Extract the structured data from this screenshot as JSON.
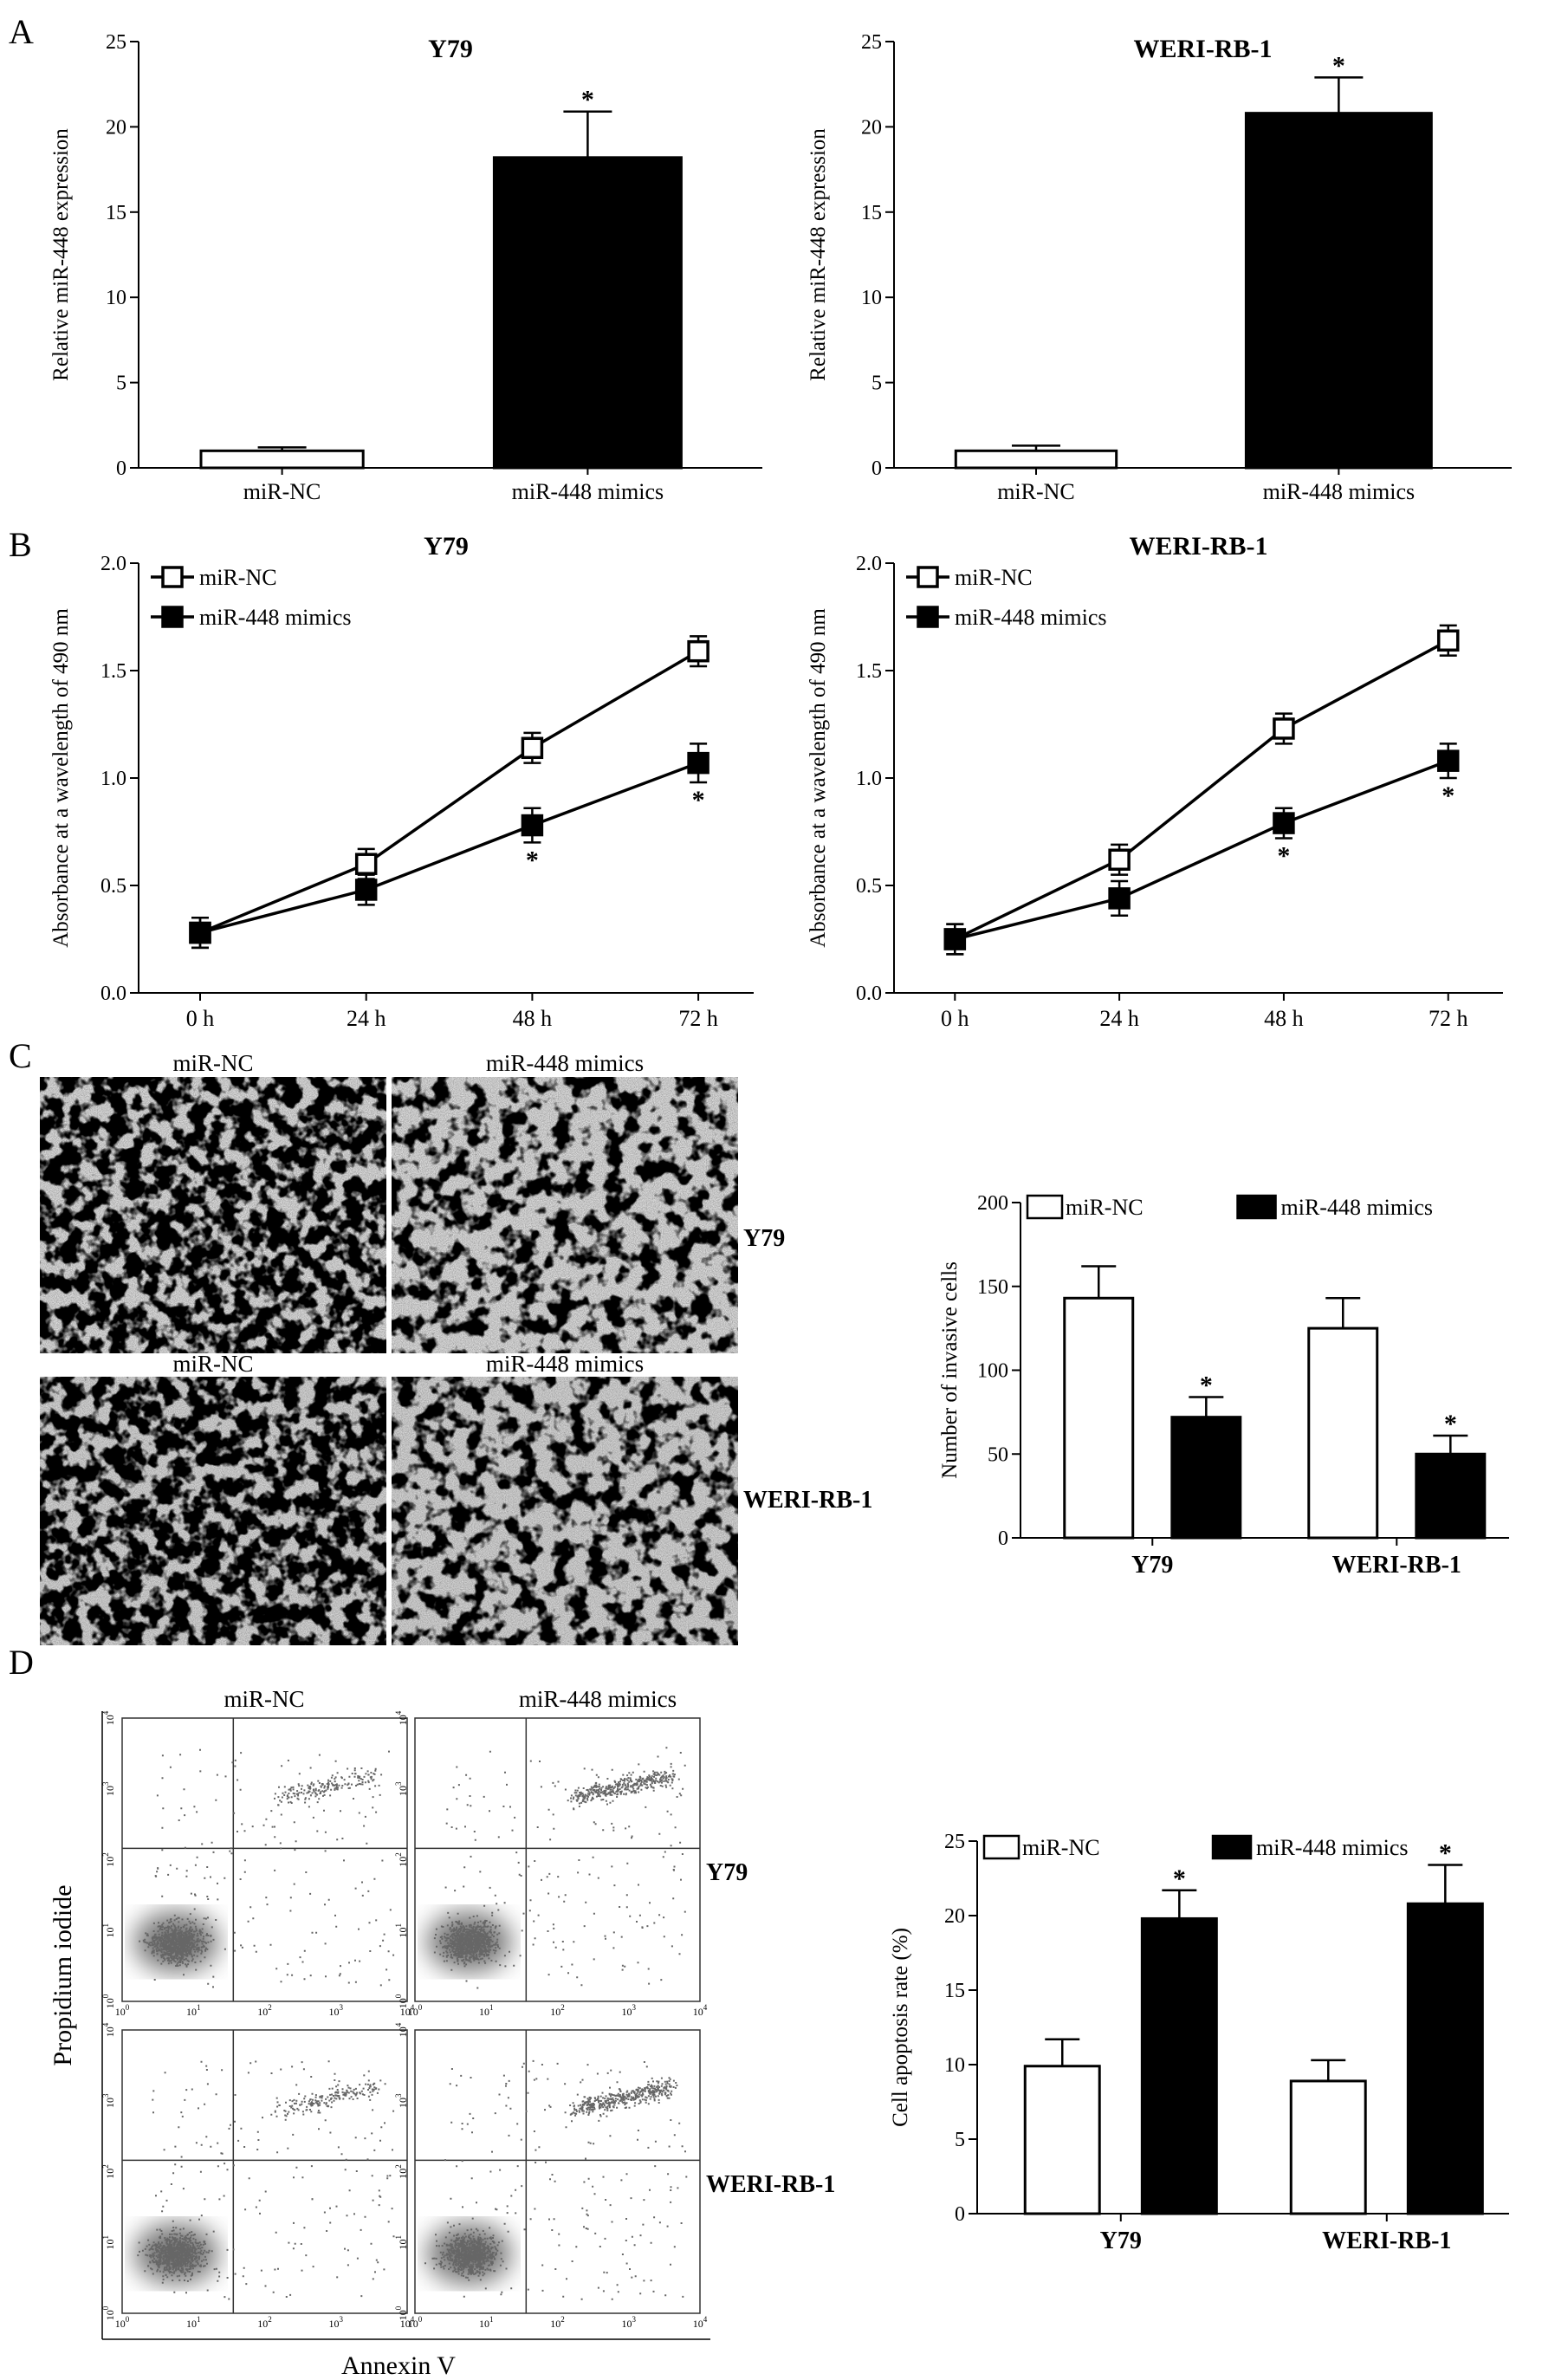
{
  "panels": {
    "A": "A",
    "B": "B",
    "C": "C",
    "D": "D"
  },
  "significance_marker": "*",
  "colors": {
    "bar_nc": "#ffffff",
    "bar_mimic": "#000000",
    "axis": "#000000"
  },
  "chart_data": [
    {
      "id": "A-Y79",
      "type": "bar",
      "title": "Y79",
      "ylabel": "Relative miR-448 expression",
      "categories": [
        "miR-NC",
        "miR-448 mimics"
      ],
      "values": [
        1.0,
        18.2
      ],
      "errors": [
        0.2,
        2.7
      ],
      "significant": [
        false,
        true
      ],
      "ylim": [
        0,
        25
      ],
      "yticks": [
        "0",
        "5",
        "10",
        "15",
        "20",
        "25"
      ]
    },
    {
      "id": "A-WERI",
      "type": "bar",
      "title": "WERI-RB-1",
      "ylabel": "Relative miR-448 expression",
      "categories": [
        "miR-NC",
        "miR-448 mimics"
      ],
      "values": [
        1.0,
        20.8
      ],
      "errors": [
        0.3,
        2.1
      ],
      "significant": [
        false,
        true
      ],
      "ylim": [
        0,
        25
      ],
      "yticks": [
        "0",
        "5",
        "10",
        "15",
        "20",
        "25"
      ]
    },
    {
      "id": "B-Y79",
      "type": "line",
      "title": "Y79",
      "ylabel": "Absorbance at a wavelength of 490 nm",
      "x": [
        "0 h",
        "24 h",
        "48 h",
        "72 h"
      ],
      "ylim": [
        0,
        2
      ],
      "yticks": [
        "0.0",
        "0.5",
        "1.0",
        "1.5",
        "2.0"
      ],
      "legend_position": "top-left",
      "series": [
        {
          "name": "miR-NC",
          "marker": "open-square",
          "values": [
            0.28,
            0.6,
            1.14,
            1.59
          ],
          "errors": [
            0.07,
            0.07,
            0.07,
            0.07
          ],
          "significant": [
            false,
            false,
            false,
            false
          ]
        },
        {
          "name": "miR-448 mimics",
          "marker": "filled-square",
          "values": [
            0.28,
            0.48,
            0.78,
            1.07
          ],
          "errors": [
            0.07,
            0.07,
            0.08,
            0.09
          ],
          "significant": [
            false,
            false,
            true,
            true
          ]
        }
      ]
    },
    {
      "id": "B-WERI",
      "type": "line",
      "title": "WERI-RB-1",
      "ylabel": "Absorbance at a wavelength of 490 nm",
      "x": [
        "0 h",
        "24 h",
        "48 h",
        "72 h"
      ],
      "ylim": [
        0,
        2
      ],
      "yticks": [
        "0.0",
        "0.5",
        "1.0",
        "1.5",
        "2.0"
      ],
      "legend_position": "top-left",
      "series": [
        {
          "name": "miR-NC",
          "marker": "open-square",
          "values": [
            0.25,
            0.62,
            1.23,
            1.64
          ],
          "errors": [
            0.07,
            0.07,
            0.07,
            0.07
          ],
          "significant": [
            false,
            false,
            false,
            false
          ]
        },
        {
          "name": "miR-448 mimics",
          "marker": "filled-square",
          "values": [
            0.25,
            0.44,
            0.79,
            1.08
          ],
          "errors": [
            0.07,
            0.08,
            0.07,
            0.08
          ],
          "significant": [
            false,
            false,
            true,
            true
          ]
        }
      ]
    },
    {
      "id": "C-invasion",
      "type": "bar",
      "ylabel": "Number of invasive cells",
      "categories": [
        "Y79",
        "WERI-RB-1"
      ],
      "ylim": [
        0,
        200
      ],
      "yticks": [
        "0",
        "50",
        "100",
        "150",
        "200"
      ],
      "legend_position": "top",
      "series": [
        {
          "name": "miR-NC",
          "values": [
            143,
            125
          ],
          "errors": [
            19,
            18
          ],
          "significant": [
            false,
            false
          ]
        },
        {
          "name": "miR-448 mimics",
          "values": [
            72,
            50
          ],
          "errors": [
            12,
            11
          ],
          "significant": [
            true,
            true
          ]
        }
      ]
    },
    {
      "id": "D-apoptosis",
      "type": "bar",
      "ylabel": "Cell apoptosis rate (%)",
      "categories": [
        "Y79",
        "WERI-RB-1"
      ],
      "ylim": [
        0,
        25
      ],
      "yticks": [
        "0",
        "5",
        "10",
        "15",
        "20",
        "25"
      ],
      "legend_position": "top",
      "series": [
        {
          "name": "miR-NC",
          "values": [
            9.9,
            8.9
          ],
          "errors": [
            1.8,
            1.4
          ],
          "significant": [
            false,
            false
          ]
        },
        {
          "name": "miR-448 mimics",
          "values": [
            19.8,
            20.8
          ],
          "errors": [
            1.9,
            2.6
          ],
          "significant": [
            true,
            true
          ]
        }
      ]
    }
  ],
  "micrographs": {
    "column_labels": [
      "miR-NC",
      "miR-448 mimics"
    ],
    "row_labels": [
      "Y79",
      "WERI-RB-1"
    ]
  },
  "flow": {
    "column_labels": [
      "miR-NC",
      "miR-448 mimics"
    ],
    "row_labels": [
      "Y79",
      "WERI-RB-1"
    ],
    "ylabel": "Propidium iodide",
    "xlabel": "Annexin V",
    "tick_base": "10",
    "tick_exps": [
      "0",
      "1",
      "2",
      "3",
      "4"
    ]
  }
}
